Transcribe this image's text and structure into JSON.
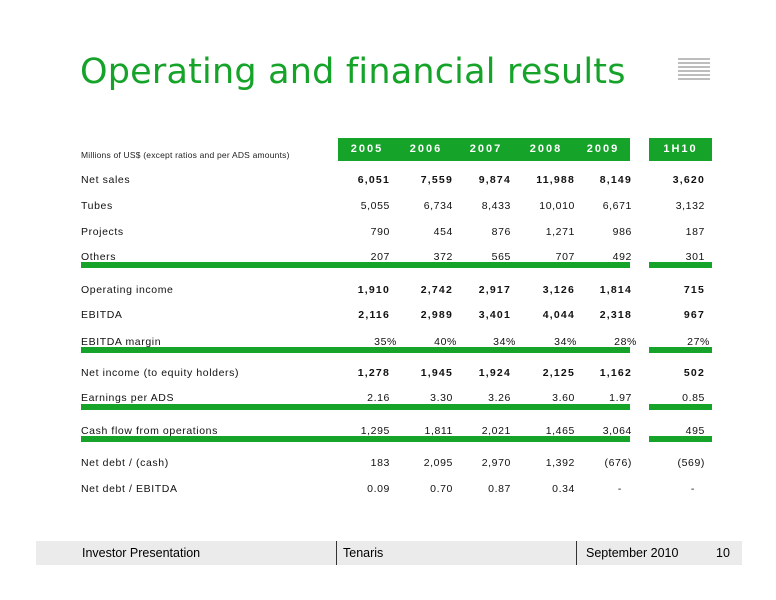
{
  "slide": {
    "title": "Operating and financial results",
    "units_note": "Millions of US$ (except ratios and per ADS amounts)"
  },
  "table": {
    "headers": [
      "2005",
      "2006",
      "2007",
      "2008",
      "2009",
      "1H10"
    ],
    "rows": [
      {
        "label": "Net sales",
        "values": [
          "6,051",
          "7,559",
          "9,874",
          "11,988",
          "8,149",
          "3,620"
        ]
      },
      {
        "label": "Tubes",
        "values": [
          "5,055",
          "6,734",
          "8,433",
          "10,010",
          "6,671",
          "3,132"
        ]
      },
      {
        "label": "Projects",
        "values": [
          "790",
          "454",
          "876",
          "1,271",
          "986",
          "187"
        ]
      },
      {
        "label": "Others",
        "values": [
          "207",
          "372",
          "565",
          "707",
          "492",
          "301"
        ]
      },
      {
        "label": "Operating income",
        "values": [
          "1,910",
          "2,742",
          "2,917",
          "3,126",
          "1,814",
          "715"
        ]
      },
      {
        "label": "EBITDA",
        "values": [
          "2,116",
          "2,989",
          "3,401",
          "4,044",
          "2,318",
          "967"
        ]
      },
      {
        "label": "EBITDA margin",
        "values": [
          "35%",
          "40%",
          "34%",
          "34%",
          "28%",
          "27%"
        ]
      },
      {
        "label": "Net income (to equity holders)",
        "values": [
          "1,278",
          "1,945",
          "1,924",
          "2,125",
          "1,162",
          "502"
        ]
      },
      {
        "label": "Earnings per ADS",
        "values": [
          "2.16",
          "3.30",
          "3.26",
          "3.60",
          "1.97",
          "0.85"
        ]
      },
      {
        "label": "Cash flow from operations",
        "values": [
          "1,295",
          "1,811",
          "2,021",
          "1,465",
          "3,064",
          "495"
        ]
      },
      {
        "label": "Net debt / (cash)",
        "values": [
          "183",
          "2,095",
          "2,970",
          "1,392",
          "(676)",
          "(569)"
        ]
      },
      {
        "label": "Net debt / EBITDA",
        "values": [
          "0.09",
          "0.70",
          "0.87",
          "0.34",
          "-",
          "-"
        ]
      }
    ]
  },
  "footer": {
    "left": "Investor Presentation",
    "center": "Tenaris",
    "date": "September 2010",
    "page": "10"
  },
  "colors": {
    "accent": "#16a32a",
    "footer_bg": "#ebebeb"
  }
}
